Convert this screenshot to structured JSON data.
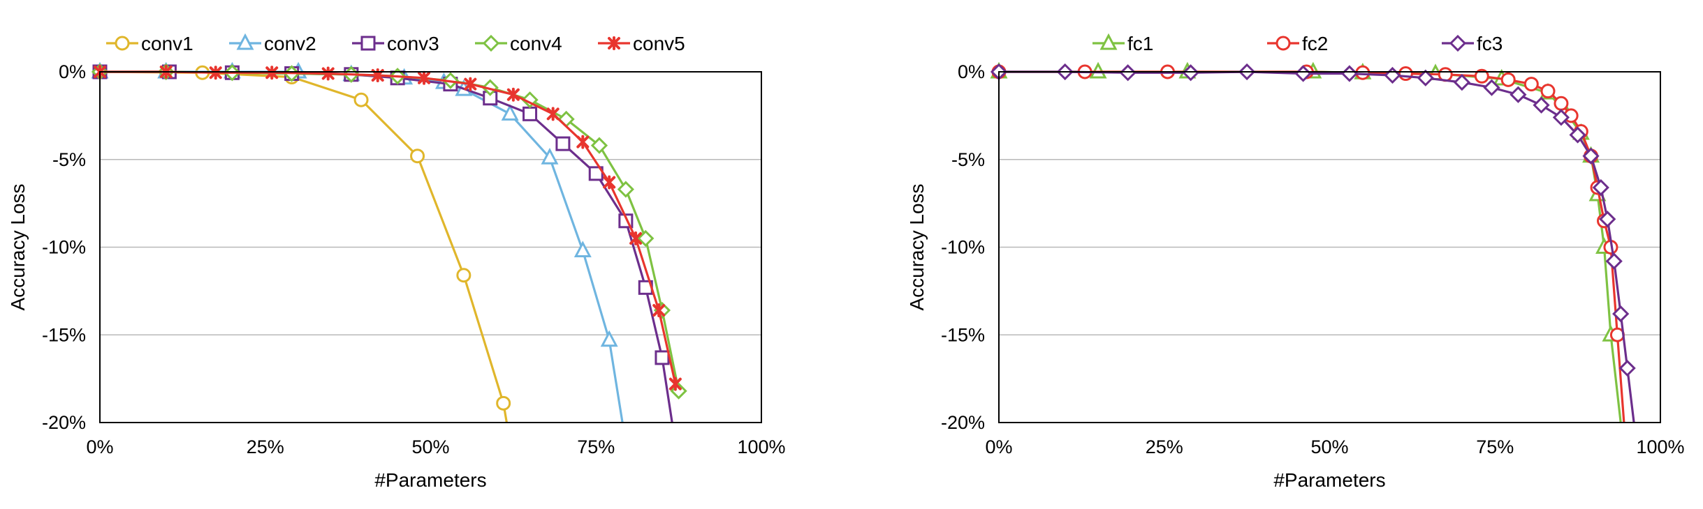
{
  "chart_data": [
    {
      "type": "line",
      "title": "",
      "xlabel": "#Parameters",
      "ylabel": "Accuracy Loss",
      "xlim": [
        0,
        100
      ],
      "ylim": [
        -20,
        0
      ],
      "xticks": [
        "0%",
        "25%",
        "50%",
        "75%",
        "100%"
      ],
      "yticks": [
        "0%",
        "-5%",
        "-10%",
        "-15%",
        "-20%"
      ],
      "grid": "horizontal",
      "legend": "top",
      "series": [
        {
          "name": "conv1",
          "color": "#e0b62b",
          "marker": "circle",
          "x": [
            0,
            15.5,
            29,
            39.5,
            48,
            55,
            61,
            61.5
          ],
          "y": [
            0,
            -0.05,
            -0.3,
            -1.6,
            -4.8,
            -11.6,
            -18.9,
            -20
          ]
        },
        {
          "name": "conv2",
          "color": "#6fb5e0",
          "marker": "triangle",
          "x": [
            0,
            10,
            20,
            30,
            38,
            46,
            52,
            55,
            62,
            68,
            73,
            77,
            79
          ],
          "y": [
            0,
            0,
            0,
            0,
            -0.15,
            -0.35,
            -0.6,
            -1.0,
            -2.4,
            -4.9,
            -10.2,
            -15.3,
            -20
          ]
        },
        {
          "name": "conv3",
          "color": "#6c2e8c",
          "marker": "square",
          "x": [
            0,
            10.5,
            20,
            29,
            38,
            45,
            53,
            59,
            65,
            70,
            75,
            79.5,
            82.5,
            85,
            86.5
          ],
          "y": [
            0,
            0,
            -0.05,
            -0.1,
            -0.15,
            -0.35,
            -0.7,
            -1.5,
            -2.4,
            -4.1,
            -5.8,
            -8.5,
            -12.3,
            -16.3,
            -20
          ]
        },
        {
          "name": "conv4",
          "color": "#7ec242",
          "marker": "diamond",
          "x": [
            0,
            10,
            20,
            29,
            38,
            45,
            53,
            59,
            65,
            70.5,
            75.5,
            79.5,
            82.5,
            85,
            87.5
          ],
          "y": [
            0,
            0,
            -0.05,
            -0.1,
            -0.15,
            -0.25,
            -0.5,
            -0.9,
            -1.6,
            -2.7,
            -4.2,
            -6.7,
            -9.5,
            -13.6,
            -18.2
          ]
        },
        {
          "name": "conv5",
          "color": "#e8352e",
          "marker": "x",
          "x": [
            0,
            10,
            17.5,
            26,
            34.5,
            42,
            49,
            56,
            62.5,
            68.5,
            73,
            77,
            81,
            84.5,
            87
          ],
          "y": [
            0,
            0,
            -0.05,
            -0.05,
            -0.1,
            -0.2,
            -0.35,
            -0.7,
            -1.3,
            -2.4,
            -4.0,
            -6.3,
            -9.5,
            -13.6,
            -17.8
          ]
        }
      ]
    },
    {
      "type": "line",
      "title": "",
      "xlabel": "#Parameters",
      "ylabel": "Accuracy Loss",
      "xlim": [
        0,
        100
      ],
      "ylim": [
        -20,
        0
      ],
      "xticks": [
        "0%",
        "25%",
        "50%",
        "75%",
        "100%"
      ],
      "yticks": [
        "0%",
        "-5%",
        "-10%",
        "-15%",
        "-20%"
      ],
      "grid": "horizontal",
      "legend": "top",
      "series": [
        {
          "name": "fc1",
          "color": "#7ec242",
          "marker": "triangle",
          "x": [
            0,
            15,
            28.5,
            47.5,
            55,
            66,
            76,
            83,
            85.5,
            88,
            89.5,
            90.5,
            91.5,
            92.5,
            94
          ],
          "y": [
            0,
            0,
            0,
            0,
            -0.05,
            -0.1,
            -0.4,
            -1.2,
            -2.2,
            -3.5,
            -4.8,
            -7.0,
            -10.0,
            -15.0,
            -20
          ]
        },
        {
          "name": "fc2",
          "color": "#e8352e",
          "marker": "circle",
          "x": [
            0,
            13,
            25.5,
            46.5,
            55,
            61.5,
            67.5,
            73,
            77,
            80.5,
            83,
            85,
            86.5,
            88,
            89.5,
            90.5,
            91.5,
            92.5,
            93.5,
            94.5
          ],
          "y": [
            0,
            0,
            0,
            0,
            -0.05,
            -0.1,
            -0.15,
            -0.25,
            -0.45,
            -0.7,
            -1.1,
            -1.8,
            -2.5,
            -3.4,
            -4.8,
            -6.6,
            -8.5,
            -10.0,
            -15.0,
            -20
          ]
        },
        {
          "name": "fc3",
          "color": "#6c2e8c",
          "marker": "diamond",
          "x": [
            0,
            10,
            19.5,
            29,
            37.5,
            46,
            53,
            59.5,
            64.5,
            70,
            74.5,
            78.5,
            82,
            85,
            87.5,
            89.5,
            91,
            92,
            93,
            94,
            95,
            96
          ],
          "y": [
            0,
            0,
            -0.05,
            -0.05,
            0,
            -0.1,
            -0.1,
            -0.2,
            -0.35,
            -0.6,
            -0.9,
            -1.3,
            -1.9,
            -2.6,
            -3.6,
            -4.8,
            -6.6,
            -8.4,
            -10.8,
            -13.8,
            -16.9,
            -20
          ]
        }
      ]
    }
  ]
}
